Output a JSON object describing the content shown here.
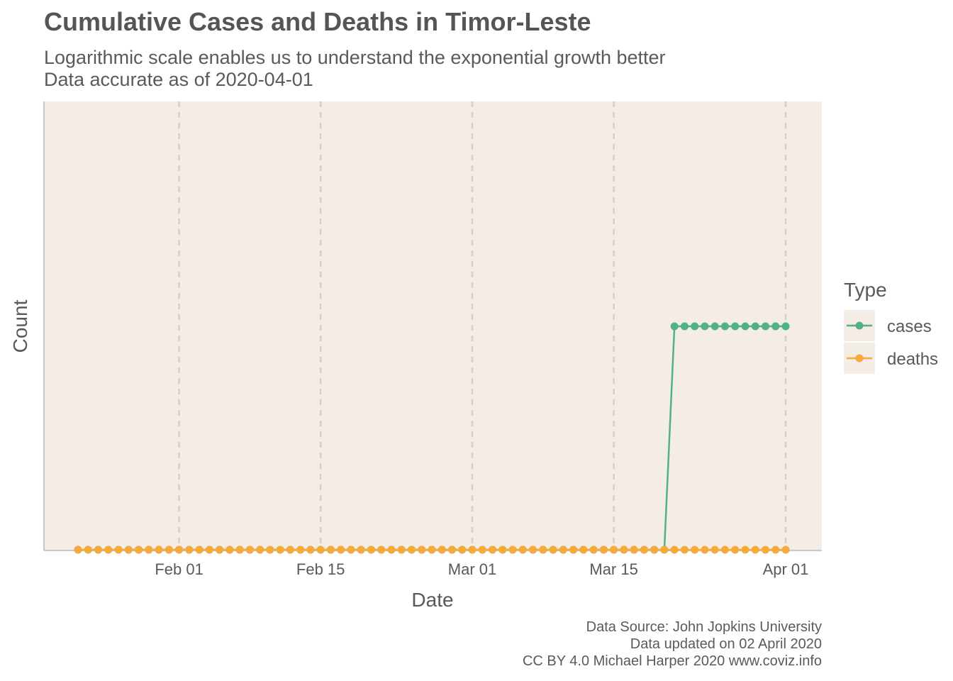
{
  "header": {
    "title": "Cumulative Cases and Deaths in Timor-Leste",
    "subtitle_line1": "Logarithmic scale enables us to understand the exponential growth better",
    "subtitle_line2": "Data accurate as of 2020-04-01"
  },
  "caption": {
    "line1": "Data Source: John Jopkins University",
    "line2": "Data updated on 02 April 2020",
    "line3": "CC BY 4.0 Michael Harper 2020 www.coviz.info"
  },
  "colors": {
    "panel_background": "#f3ede6",
    "grid": "#d0d0d0",
    "axis": "#c8c8c8",
    "cases": "#52b08c",
    "deaths": "#f7a93a",
    "text": "#595959"
  },
  "chart_data": {
    "type": "line",
    "title": "Cumulative Cases and Deaths in Timor-Leste",
    "subtitle": "Logarithmic scale enables us to understand the exponential growth better\nData accurate as of 2020-04-01",
    "xlabel": "Date",
    "ylabel": "Count",
    "y_scale": "log",
    "y_ticks_shown": false,
    "grid": "vertical dashed at x ticks",
    "legend_title": "Type",
    "legend_position": "right",
    "x_ticks": [
      {
        "date": "2020-02-01",
        "label": "Feb 01"
      },
      {
        "date": "2020-02-15",
        "label": "Feb 15"
      },
      {
        "date": "2020-03-01",
        "label": "Mar 01"
      },
      {
        "date": "2020-03-15",
        "label": "Mar 15"
      },
      {
        "date": "2020-04-01",
        "label": "Apr 01"
      }
    ],
    "xlim": [
      "2020-01-22",
      "2020-04-01"
    ],
    "series": [
      {
        "name": "cases",
        "color": "#52b08c",
        "points": [
          {
            "date_range": [
              "2020-01-22",
              "2020-03-20"
            ],
            "value": 0
          },
          {
            "date_range": [
              "2020-03-21",
              "2020-04-01"
            ],
            "value": 1
          }
        ]
      },
      {
        "name": "deaths",
        "color": "#f7a93a",
        "points": [
          {
            "date_range": [
              "2020-01-22",
              "2020-04-01"
            ],
            "value": 0
          }
        ]
      }
    ]
  }
}
